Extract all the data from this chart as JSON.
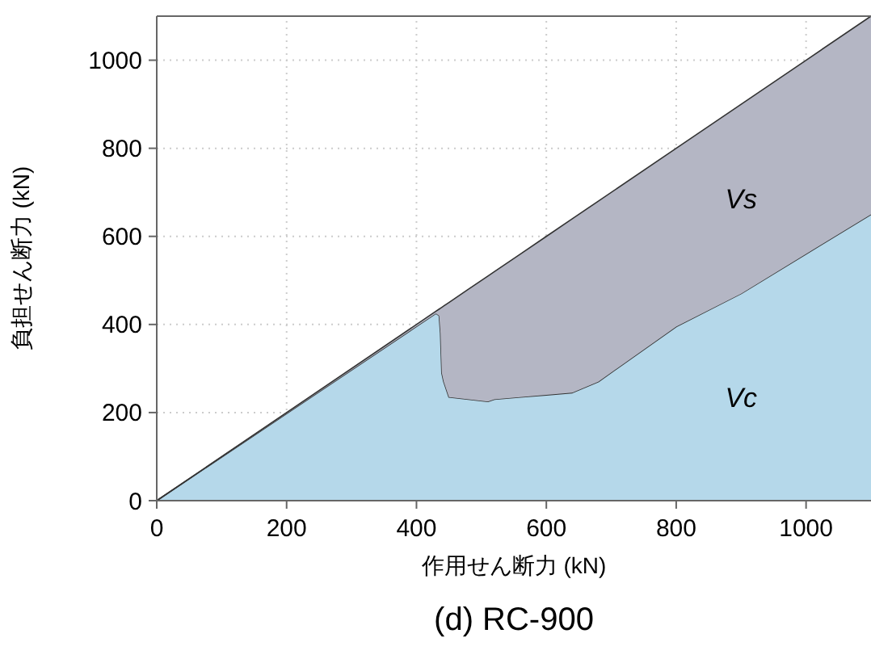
{
  "chart_data": {
    "type": "area",
    "stacked": true,
    "title": "(d) RC-900",
    "xlabel": "作用せん断力 (kN)",
    "ylabel": "負担せん断力 (kN)",
    "x": [
      0,
      430,
      435,
      437,
      439,
      442,
      450,
      480,
      510,
      520,
      560,
      600,
      640,
      680,
      800,
      900,
      1000,
      1100
    ],
    "series": [
      {
        "name": "Vc",
        "color": "#b5d8ea",
        "values": [
          0,
          425,
          420,
          380,
          290,
          270,
          235,
          230,
          225,
          230,
          235,
          240,
          245,
          270,
          395,
          470,
          560,
          650
        ]
      },
      {
        "name": "Vs",
        "color": "#b4b6c4",
        "values": [
          0,
          5,
          15,
          57,
          149,
          172,
          215,
          250,
          285,
          290,
          325,
          360,
          395,
          410,
          405,
          430,
          440,
          450
        ]
      }
    ],
    "xlim": [
      0,
      1100
    ],
    "ylim": [
      0,
      1100
    ],
    "xticks": [
      0,
      200,
      400,
      600,
      800,
      1000
    ],
    "yticks": [
      0,
      200,
      400,
      600,
      800,
      1000
    ],
    "grid": true
  }
}
